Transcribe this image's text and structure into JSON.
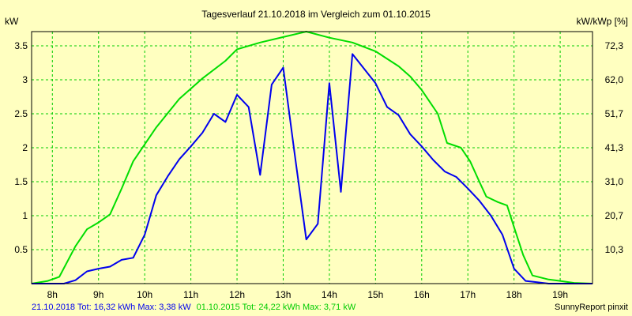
{
  "chart_data": {
    "type": "line",
    "title": "Tagesverlauf 21.10.2018 im Vergleich zum 01.10.2015",
    "ylabel_left": "kW",
    "ylabel_right": "kW/kWp [%]",
    "x_range": [
      7.55,
      19.7
    ],
    "ylim": [
      0,
      3.71
    ],
    "x_ticks": [
      8,
      9,
      10,
      11,
      12,
      13,
      14,
      15,
      16,
      17,
      18,
      19
    ],
    "x_tick_labels": [
      "8h",
      "9h",
      "10h",
      "11h",
      "12h",
      "13h",
      "14h",
      "15h",
      "16h",
      "17h",
      "18h",
      "19h"
    ],
    "y_ticks_left": [
      0.5,
      1,
      1.5,
      2,
      2.5,
      3,
      3.5
    ],
    "y_tick_labels_left": [
      "0.5",
      "1",
      "1.5",
      "2",
      "2.5",
      "3",
      "3.5"
    ],
    "y_ticks_right_values": [
      0.5,
      1,
      1.5,
      2,
      2.5,
      3,
      3.5
    ],
    "y_tick_labels_right": [
      "10,3",
      "20,7",
      "31,0",
      "41,3",
      "51,7",
      "62,0",
      "72,3"
    ],
    "grid": true,
    "series": [
      {
        "color": "#00dd00",
        "points": [
          [
            7.55,
            0
          ],
          [
            7.9,
            0.04
          ],
          [
            8.15,
            0.1
          ],
          [
            8.5,
            0.55
          ],
          [
            8.75,
            0.8
          ],
          [
            9.0,
            0.9
          ],
          [
            9.25,
            1.02
          ],
          [
            9.5,
            1.4
          ],
          [
            9.75,
            1.8
          ],
          [
            10.25,
            2.3
          ],
          [
            10.75,
            2.72
          ],
          [
            11.25,
            3.02
          ],
          [
            11.75,
            3.28
          ],
          [
            12.0,
            3.45
          ],
          [
            12.5,
            3.55
          ],
          [
            13.0,
            3.63
          ],
          [
            13.5,
            3.71
          ],
          [
            14.0,
            3.62
          ],
          [
            14.5,
            3.55
          ],
          [
            15.0,
            3.42
          ],
          [
            15.5,
            3.2
          ],
          [
            15.75,
            3.05
          ],
          [
            16.0,
            2.85
          ],
          [
            16.35,
            2.5
          ],
          [
            16.55,
            2.07
          ],
          [
            16.85,
            2.0
          ],
          [
            17.05,
            1.8
          ],
          [
            17.25,
            1.5
          ],
          [
            17.4,
            1.28
          ],
          [
            17.65,
            1.2
          ],
          [
            17.85,
            1.15
          ],
          [
            18.0,
            0.83
          ],
          [
            18.2,
            0.42
          ],
          [
            18.4,
            0.12
          ],
          [
            18.75,
            0.06
          ],
          [
            19.0,
            0.04
          ],
          [
            19.3,
            0.01
          ],
          [
            19.7,
            0
          ]
        ]
      },
      {
        "color": "#0000ee",
        "points": [
          [
            7.55,
            0
          ],
          [
            8.25,
            0
          ],
          [
            8.5,
            0.05
          ],
          [
            8.75,
            0.18
          ],
          [
            9.0,
            0.22
          ],
          [
            9.25,
            0.25
          ],
          [
            9.5,
            0.35
          ],
          [
            9.75,
            0.38
          ],
          [
            10.0,
            0.72
          ],
          [
            10.25,
            1.3
          ],
          [
            10.5,
            1.58
          ],
          [
            10.75,
            1.83
          ],
          [
            11.0,
            2.02
          ],
          [
            11.25,
            2.22
          ],
          [
            11.5,
            2.5
          ],
          [
            11.75,
            2.38
          ],
          [
            12.0,
            2.78
          ],
          [
            12.25,
            2.6
          ],
          [
            12.5,
            1.6
          ],
          [
            12.75,
            2.93
          ],
          [
            13.0,
            3.18
          ],
          [
            13.25,
            1.9
          ],
          [
            13.5,
            0.65
          ],
          [
            13.75,
            0.88
          ],
          [
            14.0,
            2.95
          ],
          [
            14.25,
            1.35
          ],
          [
            14.5,
            3.38
          ],
          [
            15.0,
            2.95
          ],
          [
            15.25,
            2.6
          ],
          [
            15.5,
            2.48
          ],
          [
            15.75,
            2.2
          ],
          [
            16.0,
            2.02
          ],
          [
            16.25,
            1.82
          ],
          [
            16.5,
            1.65
          ],
          [
            16.75,
            1.57
          ],
          [
            17.0,
            1.4
          ],
          [
            17.25,
            1.22
          ],
          [
            17.5,
            1.0
          ],
          [
            17.75,
            0.72
          ],
          [
            18.0,
            0.22
          ],
          [
            18.25,
            0.04
          ],
          [
            18.5,
            0.02
          ],
          [
            18.75,
            0
          ],
          [
            19.7,
            0
          ]
        ]
      }
    ]
  },
  "footer": {
    "part1": "21.10.2018 Tot: 16,32 kWh Max: 3,38 kW",
    "part2": "01.10.2015 Tot: 24,22 kWh Max: 3,71 kW",
    "credit": "SunnyReport pinxit"
  },
  "colors": {
    "background": "#ffffc0",
    "grid": "#00cc00",
    "frame": "#000000",
    "text_series_1": "#0000ee",
    "text_series_2": "#00cc00"
  }
}
